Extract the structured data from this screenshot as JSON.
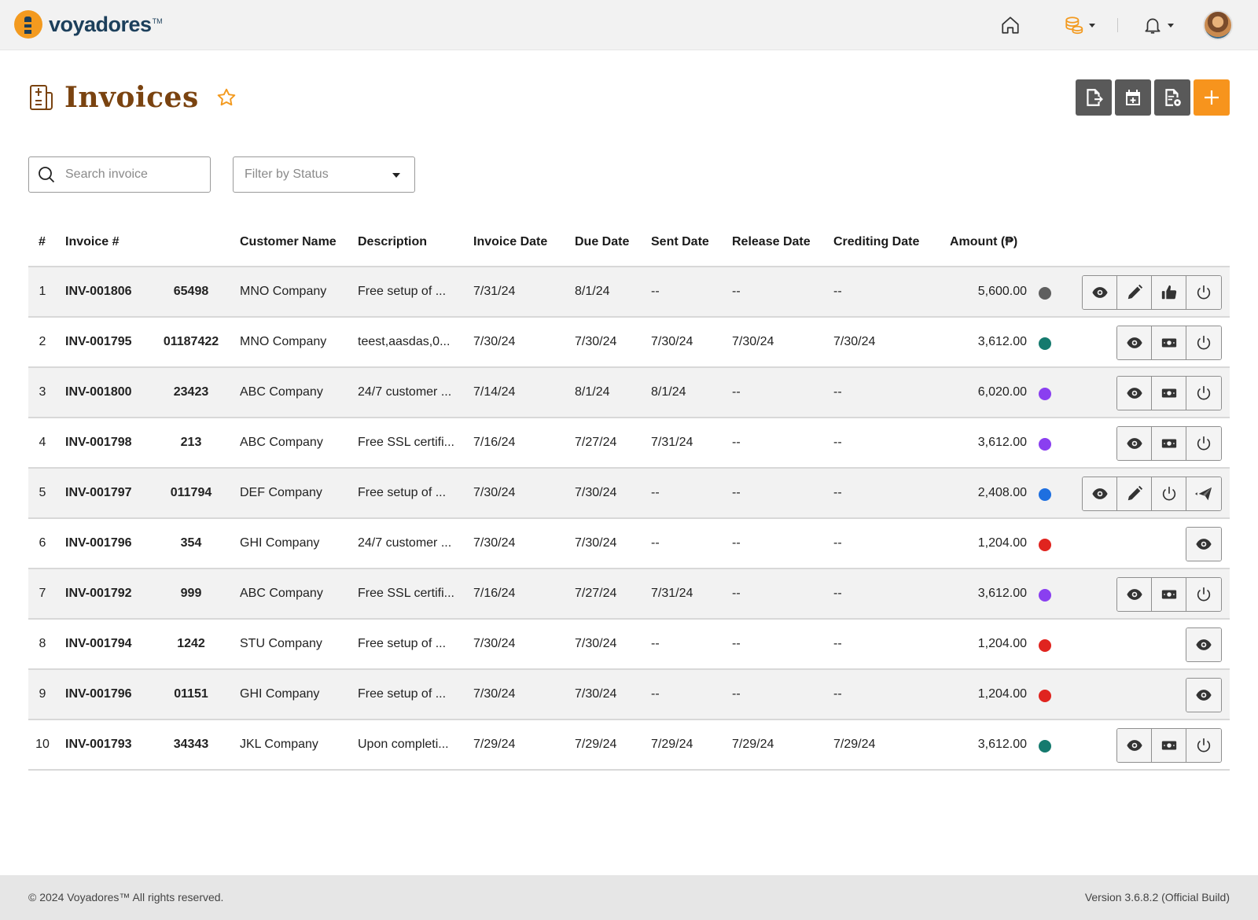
{
  "app": {
    "brand": "voyadores",
    "brand_tm": "TM"
  },
  "page": {
    "title": "Invoices"
  },
  "filters": {
    "search_placeholder": "Search invoice",
    "status_placeholder": "Filter by Status"
  },
  "table": {
    "headers": [
      "#",
      "Invoice #",
      "Customer Name",
      "Description",
      "Invoice Date",
      "Due Date",
      "Sent Date",
      "Release Date",
      "Crediting Date",
      "Amount (₱)"
    ],
    "rows": [
      {
        "num": "1",
        "invoice": "INV-001806",
        "ref": "65498",
        "customer": "MNO Company",
        "description": "Free setup of ...",
        "invoice_date": "7/31/24",
        "due_date": "8/1/24",
        "sent_date": "--",
        "release_date": "--",
        "crediting_date": "--",
        "amount": "5,600.00",
        "status_color": "#5f5f5f",
        "actions": [
          "view",
          "edit",
          "approve",
          "power"
        ]
      },
      {
        "num": "2",
        "invoice": "INV-001795",
        "ref": "01187422",
        "customer": "MNO Company",
        "description": "teest,aasdas,0...",
        "invoice_date": "7/30/24",
        "due_date": "7/30/24",
        "sent_date": "7/30/24",
        "release_date": "7/30/24",
        "crediting_date": "7/30/24",
        "amount": "3,612.00",
        "status_color": "#157a6e",
        "actions": [
          "view",
          "cash",
          "power"
        ]
      },
      {
        "num": "3",
        "invoice": "INV-001800",
        "ref": "23423",
        "customer": "ABC Company",
        "description": "24/7 customer ...",
        "invoice_date": "7/14/24",
        "due_date": "8/1/24",
        "sent_date": "8/1/24",
        "release_date": "--",
        "crediting_date": "--",
        "amount": "6,020.00",
        "status_color": "#8a3ff0",
        "actions": [
          "view",
          "cash",
          "power"
        ]
      },
      {
        "num": "4",
        "invoice": "INV-001798",
        "ref": "213",
        "customer": "ABC Company",
        "description": "Free SSL certifi...",
        "invoice_date": "7/16/24",
        "due_date": "7/27/24",
        "sent_date": "7/31/24",
        "release_date": "--",
        "crediting_date": "--",
        "amount": "3,612.00",
        "status_color": "#8a3ff0",
        "actions": [
          "view",
          "cash",
          "power"
        ]
      },
      {
        "num": "5",
        "invoice": "INV-001797",
        "ref": "011794",
        "customer": "DEF Company",
        "description": "Free setup of ...",
        "invoice_date": "7/30/24",
        "due_date": "7/30/24",
        "sent_date": "--",
        "release_date": "--",
        "crediting_date": "--",
        "amount": "2,408.00",
        "status_color": "#1e6fe0",
        "actions": [
          "view",
          "edit",
          "power",
          "send"
        ]
      },
      {
        "num": "6",
        "invoice": "INV-001796",
        "ref": "354",
        "customer": "GHI Company",
        "description": "24/7 customer ...",
        "invoice_date": "7/30/24",
        "due_date": "7/30/24",
        "sent_date": "--",
        "release_date": "--",
        "crediting_date": "--",
        "amount": "1,204.00",
        "status_color": "#e0241f",
        "actions": [
          "view"
        ]
      },
      {
        "num": "7",
        "invoice": "INV-001792",
        "ref": "999",
        "customer": "ABC Company",
        "description": "Free SSL certifi...",
        "invoice_date": "7/16/24",
        "due_date": "7/27/24",
        "sent_date": "7/31/24",
        "release_date": "--",
        "crediting_date": "--",
        "amount": "3,612.00",
        "status_color": "#8a3ff0",
        "actions": [
          "view",
          "cash",
          "power"
        ]
      },
      {
        "num": "8",
        "invoice": "INV-001794",
        "ref": "1242",
        "customer": "STU Company",
        "description": "Free setup of ...",
        "invoice_date": "7/30/24",
        "due_date": "7/30/24",
        "sent_date": "--",
        "release_date": "--",
        "crediting_date": "--",
        "amount": "1,204.00",
        "status_color": "#e0241f",
        "actions": [
          "view"
        ]
      },
      {
        "num": "9",
        "invoice": "INV-001796",
        "ref": "01151",
        "customer": "GHI Company",
        "description": "Free setup of ...",
        "invoice_date": "7/30/24",
        "due_date": "7/30/24",
        "sent_date": "--",
        "release_date": "--",
        "crediting_date": "--",
        "amount": "1,204.00",
        "status_color": "#e0241f",
        "actions": [
          "view"
        ]
      },
      {
        "num": "10",
        "invoice": "INV-001793",
        "ref": "34343",
        "customer": "JKL Company",
        "description": "Upon completi...",
        "invoice_date": "7/29/24",
        "due_date": "7/29/24",
        "sent_date": "7/29/24",
        "release_date": "7/29/24",
        "crediting_date": "7/29/24",
        "amount": "3,612.00",
        "status_color": "#157a6e",
        "actions": [
          "view",
          "cash",
          "power"
        ]
      }
    ]
  },
  "footer": {
    "copyright": "© 2024 Voyadores™ All rights reserved.",
    "version": "Version 3.6.8.2 (Official Build)"
  },
  "colors": {
    "accent": "#f7941d",
    "title": "#7a4310",
    "brand_navy": "#1c3f5b",
    "toolbar_button": "#595959"
  }
}
